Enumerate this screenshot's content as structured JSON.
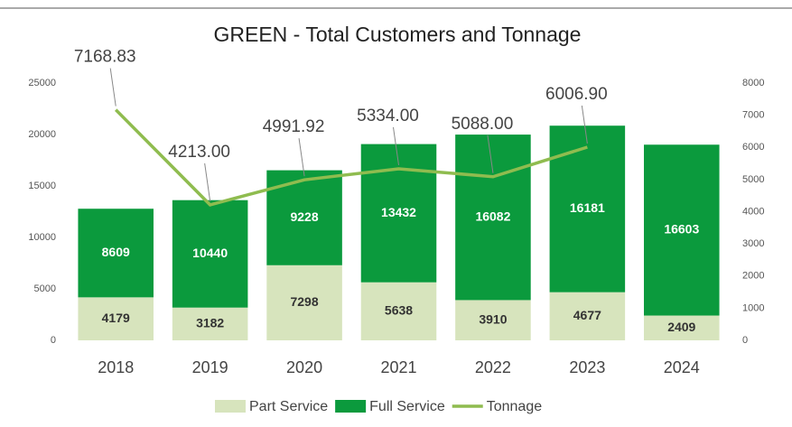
{
  "chart_data": {
    "type": "bar",
    "stacked": true,
    "title": "GREEN - Total Customers and Tonnage",
    "categories": [
      "2018",
      "2019",
      "2020",
      "2021",
      "2022",
      "2023",
      "2024"
    ],
    "series": [
      {
        "name": "Part Service",
        "color": "#d7e4bd",
        "values": [
          4179,
          3182,
          7298,
          5638,
          3910,
          4677,
          2409
        ]
      },
      {
        "name": "Full Service",
        "color": "#0b9a3d",
        "values": [
          8609,
          10440,
          9228,
          13432,
          16082,
          16181,
          16603
        ]
      },
      {
        "name": "Tonnage",
        "type": "line",
        "axis": "y2",
        "color": "#8fbc4f",
        "values": [
          7168.83,
          4213.0,
          4991.92,
          5334.0,
          5088.0,
          6006.9,
          null
        ],
        "value_labels": [
          "7168.83",
          "4213.00",
          "4991.92",
          "5334.00",
          "5088.00",
          "6006.90",
          null
        ]
      }
    ],
    "ylim": [
      0,
      25000
    ],
    "yticks": [
      0,
      5000,
      10000,
      15000,
      20000,
      25000
    ],
    "y2lim": [
      0,
      8000
    ],
    "y2ticks": [
      0,
      1000,
      2000,
      3000,
      4000,
      5000,
      6000,
      7000,
      8000
    ],
    "legend": "bottom"
  }
}
